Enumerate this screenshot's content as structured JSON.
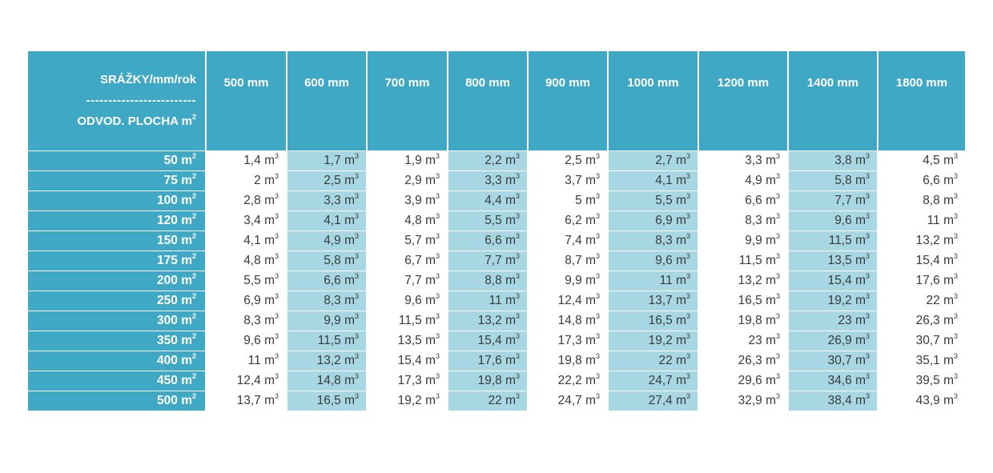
{
  "corner": {
    "line1": "SRÁŽKY/mm/rok",
    "line2": "-------------------------",
    "line3": "ODVOD.  PLOCHA m",
    "line3_sup": "2"
  },
  "unit": {
    "row_unit": "m",
    "row_unit_sup": "2",
    "cell_unit": "m",
    "cell_unit_sup": "3"
  },
  "columns": [
    "500 mm",
    "600 mm",
    "700 mm",
    "800 mm",
    "900 mm",
    "1000 mm",
    "1200 mm",
    "1400 mm",
    "1800 mm"
  ],
  "shaded_columns": [
    1,
    3,
    5,
    7
  ],
  "colors": {
    "header": "#3fa8c4",
    "shade": "#a6d7e2",
    "text": "#3a3a3a"
  },
  "rows": [
    {
      "area": "50",
      "values": [
        "1,4",
        "1,7",
        "1,9",
        "2,2",
        "2,5",
        "2,7",
        "3,3",
        "3,8",
        "4,5"
      ]
    },
    {
      "area": "75",
      "values": [
        "2",
        "2,5",
        "2,9",
        "3,3",
        "3,7",
        "4,1",
        "4,9",
        "5,8",
        "6,6"
      ]
    },
    {
      "area": "100",
      "values": [
        "2,8",
        "3,3",
        "3,9",
        "4,4",
        "5",
        "5,5",
        "6,6",
        "7,7",
        "8,8"
      ]
    },
    {
      "area": "120",
      "values": [
        "3,4",
        "4,1",
        "4,8",
        "5,5",
        "6,2",
        "6,9",
        "8,3",
        "9,6",
        "11"
      ]
    },
    {
      "area": "150",
      "values": [
        "4,1",
        "4,9",
        "5,7",
        "6,6",
        "7,4",
        "8,3",
        "9,9",
        "11,5",
        "13,2"
      ]
    },
    {
      "area": "175",
      "values": [
        "4,8",
        "5,8",
        "6,7",
        "7,7",
        "8,7",
        "9,6",
        "11,5",
        "13,5",
        "15,4"
      ]
    },
    {
      "area": "200",
      "values": [
        "5,5",
        "6,6",
        "7,7",
        "8,8",
        "9,9",
        "11",
        "13,2",
        "15,4",
        "17,6"
      ]
    },
    {
      "area": "250",
      "values": [
        "6,9",
        "8,3",
        "9,6",
        "11",
        "12,4",
        "13,7",
        "16,5",
        "19,2",
        "22"
      ]
    },
    {
      "area": "300",
      "values": [
        "8,3",
        "9,9",
        "11,5",
        "13,2",
        "14,8",
        "16,5",
        "19,8",
        "23",
        "26,3"
      ]
    },
    {
      "area": "350",
      "values": [
        "9,6",
        "11,5",
        "13,5",
        "15,4",
        "17,3",
        "19,2",
        "23",
        "26,9",
        "30,7"
      ]
    },
    {
      "area": "400",
      "values": [
        "11",
        "13,2",
        "15,4",
        "17,6",
        "19,8",
        "22",
        "26,3",
        "30,7",
        "35,1"
      ]
    },
    {
      "area": "450",
      "values": [
        "12,4",
        "14,8",
        "17,3",
        "19,8",
        "22,2",
        "24,7",
        "29,6",
        "34,6",
        "39,5"
      ]
    },
    {
      "area": "500",
      "values": [
        "13,7",
        "16,5",
        "19,2",
        "22",
        "24,7",
        "27,4",
        "32,9",
        "38,4",
        "43,9"
      ]
    }
  ]
}
